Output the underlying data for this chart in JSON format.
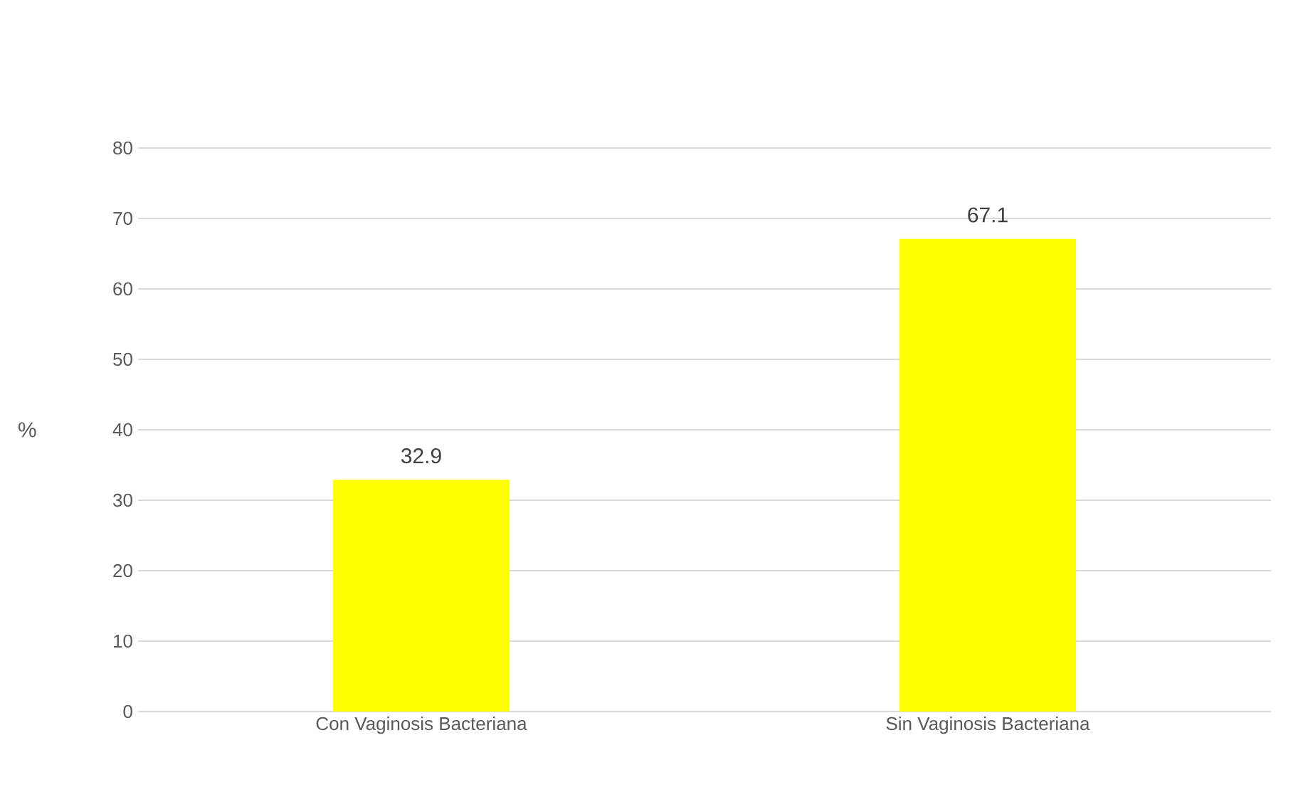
{
  "chart_data": {
    "type": "bar",
    "ylabel": "%",
    "categories": [
      "Con Vaginosis Bacteriana",
      "Sin Vaginosis Bacteriana"
    ],
    "values": [
      32.9,
      67.1
    ],
    "color": "#ffff00",
    "ylim": [
      0,
      80
    ],
    "yticks": [
      0,
      10,
      20,
      30,
      40,
      50,
      60,
      70,
      80
    ],
    "grid": "y",
    "data_labels": true
  }
}
